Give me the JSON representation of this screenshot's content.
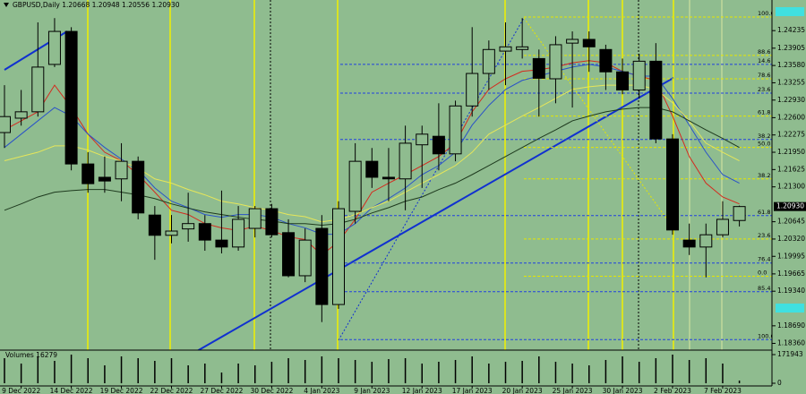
{
  "chart_data": {
    "type": "candlestick",
    "title": "GBPUSD,Daily  1.20668 1.20948 1.20556 1.20930",
    "categories": [
      null,
      "9 Dec 2022",
      null,
      null,
      "14 Dec 2022",
      null,
      null,
      "19 Dec 2022",
      null,
      null,
      "22 Dec 2022",
      null,
      null,
      "27 Dec 2022",
      null,
      null,
      "30 Dec 2022",
      null,
      null,
      "4 Jan 2023",
      null,
      null,
      "9 Jan 2023",
      null,
      null,
      "12 Jan 2023",
      null,
      null,
      "17 Jan 2023",
      null,
      null,
      "20 Jan 2023",
      null,
      null,
      "25 Jan 2023",
      null,
      null,
      "30 Jan 2023",
      null,
      null,
      "2 Feb 2023",
      null,
      null,
      "7 Feb 2023",
      null
    ],
    "open": [
      1.2232,
      1.2259,
      1.2271,
      1.236,
      1.2422,
      1.2173,
      1.2148,
      1.2145,
      1.2178,
      1.2077,
      1.2039,
      1.2051,
      1.2061,
      1.203,
      1.2017,
      1.2052,
      1.2089,
      1.2044,
      1.1963,
      1.2052,
      1.1909,
      1.2084,
      1.2178,
      1.2148,
      1.2145,
      1.2209,
      1.2225,
      1.2192,
      1.2282,
      1.2343,
      1.2385,
      1.2388,
      1.2371,
      1.2333,
      1.24,
      1.2407,
      1.2388,
      1.2346,
      1.2312,
      1.2366,
      1.222,
      1.203,
      1.2017,
      1.204,
      1.20668
    ],
    "high": [
      1.2321,
      1.2312,
      1.2439,
      1.2447,
      1.243,
      1.2195,
      1.2187,
      1.2212,
      1.2187,
      1.2094,
      1.2077,
      1.2119,
      1.2077,
      1.2123,
      1.2094,
      1.2094,
      1.2098,
      1.2069,
      1.2052,
      1.2077,
      1.2103,
      1.2212,
      1.2203,
      1.2203,
      1.2245,
      1.2245,
      1.2287,
      1.2292,
      1.243,
      1.2405,
      1.2439,
      1.2447,
      1.2388,
      1.2413,
      1.2422,
      1.2422,
      1.2397,
      1.2371,
      1.238,
      1.24,
      1.2229,
      1.2061,
      1.2061,
      1.2103,
      1.20948
    ],
    "low": [
      1.2203,
      1.2245,
      1.2262,
      1.2355,
      1.2161,
      1.2119,
      1.2119,
      1.2103,
      1.2069,
      1.1993,
      1.2024,
      1.2027,
      1.201,
      1.2005,
      1.201,
      1.2035,
      1.2035,
      1.196,
      1.1951,
      1.1876,
      1.1901,
      1.2061,
      1.2128,
      1.2103,
      1.2086,
      1.2128,
      1.2161,
      1.2178,
      1.2262,
      1.2312,
      1.2321,
      1.2371,
      1.2262,
      1.2287,
      1.2279,
      1.2346,
      1.2312,
      1.2304,
      1.2296,
      1.2212,
      1.204,
      1.2002,
      1.196,
      1.2035,
      1.20556
    ],
    "close": [
      1.2262,
      1.2271,
      1.2355,
      1.2422,
      1.2173,
      1.2136,
      1.2141,
      1.2178,
      1.2081,
      1.2039,
      1.2047,
      1.2061,
      1.203,
      1.2017,
      1.2069,
      1.2089,
      1.204,
      1.1963,
      1.203,
      1.1909,
      1.2089,
      1.2178,
      1.2148,
      1.2145,
      1.2212,
      1.2229,
      1.2192,
      1.2282,
      1.2343,
      1.2388,
      1.2393,
      1.2393,
      1.2334,
      1.2397,
      1.2407,
      1.2393,
      1.2346,
      1.2312,
      1.2366,
      1.222,
      1.2049,
      1.2017,
      1.204,
      1.2069,
      1.2093
    ],
    "up_color": "#8fbc8f",
    "down_color": "#000000",
    "ylim": [
      1.1825,
      1.2481
    ],
    "yticks": [
      1.24235,
      1.23905,
      {
        "value": 1.2358,
        "label": "1.23580"
      },
      1.23255,
      {
        "value": 1.2293,
        "label": "1.22930"
      },
      {
        "value": 1.226,
        "label": "1.22600"
      },
      1.22275,
      {
        "value": 1.2195,
        "label": "1.21950"
      },
      1.21625,
      {
        "value": 1.213,
        "label": "1.21300"
      },
      1.20645,
      {
        "value": 1.2032,
        "label": "1.20320"
      },
      1.19995,
      1.19665,
      {
        "value": 1.1934,
        "label": "1.19340"
      },
      {
        "value": 1.1869,
        "label": "1.18690"
      },
      {
        "value": 1.1836,
        "label": "1.18360"
      }
    ],
    "price_label": {
      "value": 1.2093,
      "label": "1.20930"
    },
    "overlays": [
      {
        "color": "#d42a1e",
        "values": [
          1.2237,
          1.2254,
          1.2271,
          1.2321,
          1.2279,
          1.2229,
          1.2195,
          1.2179,
          1.2153,
          1.212,
          1.2086,
          1.2078,
          1.2061,
          1.2053,
          1.2048,
          1.2056,
          1.2048,
          1.2036,
          1.2031,
          1.2002,
          1.2027,
          1.2069,
          1.212,
          1.2137,
          1.2153,
          1.217,
          1.2187,
          1.2212,
          1.2271,
          1.2313,
          1.2333,
          1.2347,
          1.235,
          1.2355,
          1.2363,
          1.2367,
          1.2363,
          1.2347,
          1.2338,
          1.233,
          1.2263,
          1.2187,
          1.2137,
          1.2111,
          1.2098
        ]
      },
      {
        "color": "#2a52c8",
        "values": [
          1.2204,
          1.2229,
          1.2254,
          1.2279,
          1.2263,
          1.2229,
          1.2204,
          1.2182,
          1.2162,
          1.2128,
          1.2103,
          1.2091,
          1.2078,
          1.2073,
          1.2078,
          1.2078,
          1.2073,
          1.2061,
          1.2053,
          1.2041,
          1.2041,
          1.2061,
          1.2091,
          1.2108,
          1.2128,
          1.2153,
          1.217,
          1.2195,
          1.2246,
          1.2283,
          1.2313,
          1.233,
          1.2338,
          1.2347,
          1.2355,
          1.236,
          1.2355,
          1.2347,
          1.2338,
          1.2338,
          1.2296,
          1.2246,
          1.2195,
          1.2153,
          1.2137
        ]
      },
      {
        "color": "#e6e65a",
        "values": [
          1.2179,
          1.2187,
          1.2195,
          1.2207,
          1.2207,
          1.2199,
          1.2187,
          1.2179,
          1.2165,
          1.2145,
          1.2137,
          1.2125,
          1.2115,
          1.2103,
          1.2098,
          1.2091,
          1.2086,
          1.2078,
          1.2074,
          1.2064,
          1.2069,
          1.2078,
          1.2091,
          1.2103,
          1.212,
          1.2137,
          1.2153,
          1.217,
          1.2195,
          1.2229,
          1.2246,
          1.2263,
          1.2279,
          1.2296,
          1.2313,
          1.2318,
          1.2321,
          1.2321,
          1.2321,
          1.2313,
          1.2288,
          1.2254,
          1.2212,
          1.2195,
          1.2179
        ]
      },
      {
        "color": "#1e3a1e",
        "values": [
          1.2086,
          1.2098,
          1.2111,
          1.212,
          1.2123,
          1.2125,
          1.2125,
          1.212,
          1.2115,
          1.2108,
          1.2098,
          1.209,
          1.2083,
          1.2078,
          1.2073,
          1.2069,
          1.2066,
          1.2061,
          1.2061,
          1.2058,
          1.2061,
          1.2069,
          1.2081,
          1.2091,
          1.2103,
          1.2111,
          1.2125,
          1.2137,
          1.2153,
          1.217,
          1.2187,
          1.2204,
          1.2221,
          1.2237,
          1.2254,
          1.2263,
          1.2271,
          1.2276,
          1.2279,
          1.2279,
          1.2271,
          1.2254,
          1.2237,
          1.2221,
          1.2204
        ]
      }
    ],
    "fib_levels": [
      {
        "label": "100.0",
        "price": 1.2449,
        "color": "#e6e600"
      },
      {
        "label": "88.6",
        "price": 1.2377,
        "color": "#e6e600"
      },
      {
        "label": "78.6",
        "price": 1.2333,
        "color": "#e6e600"
      },
      {
        "label": "61.8",
        "price": 1.2263,
        "color": "#e6e600"
      },
      {
        "label": "50.0",
        "price": 1.2204,
        "color": "#e6e600"
      },
      {
        "label": "38.2",
        "price": 1.2145,
        "color": "#e6e600"
      },
      {
        "label": "23.6",
        "price": 1.2032,
        "color": "#e6e600"
      },
      {
        "label": "0.0",
        "price": 1.1962,
        "color": "#e6e600"
      },
      {
        "label": "14.6",
        "price": 1.236,
        "color": "#2040e0"
      },
      {
        "label": "23.6",
        "price": 1.2306,
        "color": "#2040e0"
      },
      {
        "label": "38.2",
        "price": 1.2219,
        "color": "#2040e0"
      },
      {
        "label": "61.8",
        "price": 1.2076,
        "color": "#2040e0"
      },
      {
        "label": "76.4",
        "price": 1.1987,
        "color": "#2040e0"
      },
      {
        "label": "85.4",
        "price": 1.1933,
        "color": "#2040e0"
      },
      {
        "label": "100.0",
        "price": 1.1843,
        "color": "#2040e0"
      }
    ],
    "volume": {
      "title": "Volumes 16279",
      "color": "#000000",
      "values": [
        150444,
        118206,
        161190,
        134325,
        171936,
        150444,
        107460,
        161190,
        150444,
        134325,
        150444,
        107460,
        118206,
        64476,
        118206,
        107460,
        128952,
        150444,
        139698,
        161190,
        150444,
        139698,
        128952,
        145071,
        150444,
        118206,
        128952,
        139698,
        161190,
        118206,
        128952,
        134325,
        161190,
        128952,
        118206,
        107460,
        139698,
        161190,
        128952,
        150444,
        171936,
        139698,
        150444,
        118206,
        16279
      ],
      "ylim": [
        0,
        171943
      ],
      "yticks": [
        171943,
        0
      ]
    }
  }
}
